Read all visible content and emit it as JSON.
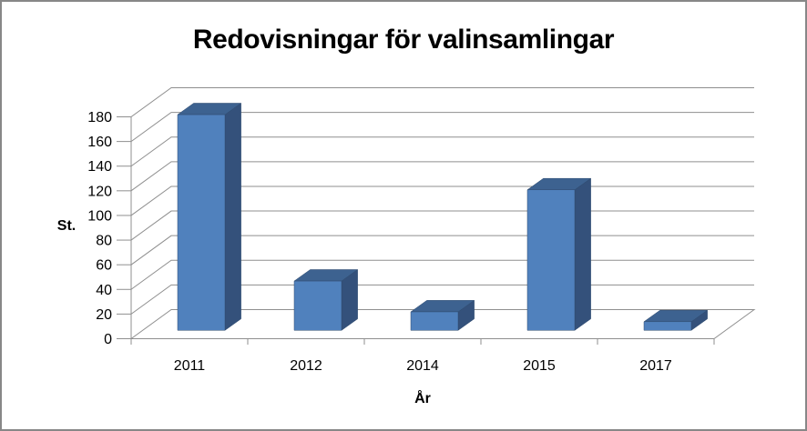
{
  "frame": {
    "border_color": "#878787",
    "background": "#ffffff"
  },
  "chart_data": {
    "type": "bar",
    "projection": "3d-column",
    "title": "Redovisningar för valinsamlingar",
    "categories": [
      "2011",
      "2012",
      "2014",
      "2015",
      "2017"
    ],
    "values": [
      175,
      40,
      15,
      114,
      7
    ],
    "xlabel": "År",
    "ylabel": "St.",
    "ylim": [
      0,
      180
    ],
    "ytick_step": 20,
    "yticks": [
      0,
      20,
      40,
      60,
      80,
      100,
      120,
      140,
      160,
      180
    ],
    "grid": true,
    "legend": false,
    "colors": {
      "bar_front": "#5081bd",
      "bar_top": "#3d6290",
      "bar_side": "#34517b",
      "bar_edge": "#2e4a6e",
      "gridline": "#8f8f8f",
      "axis": "#8f8f8f",
      "text": "#000000"
    }
  }
}
